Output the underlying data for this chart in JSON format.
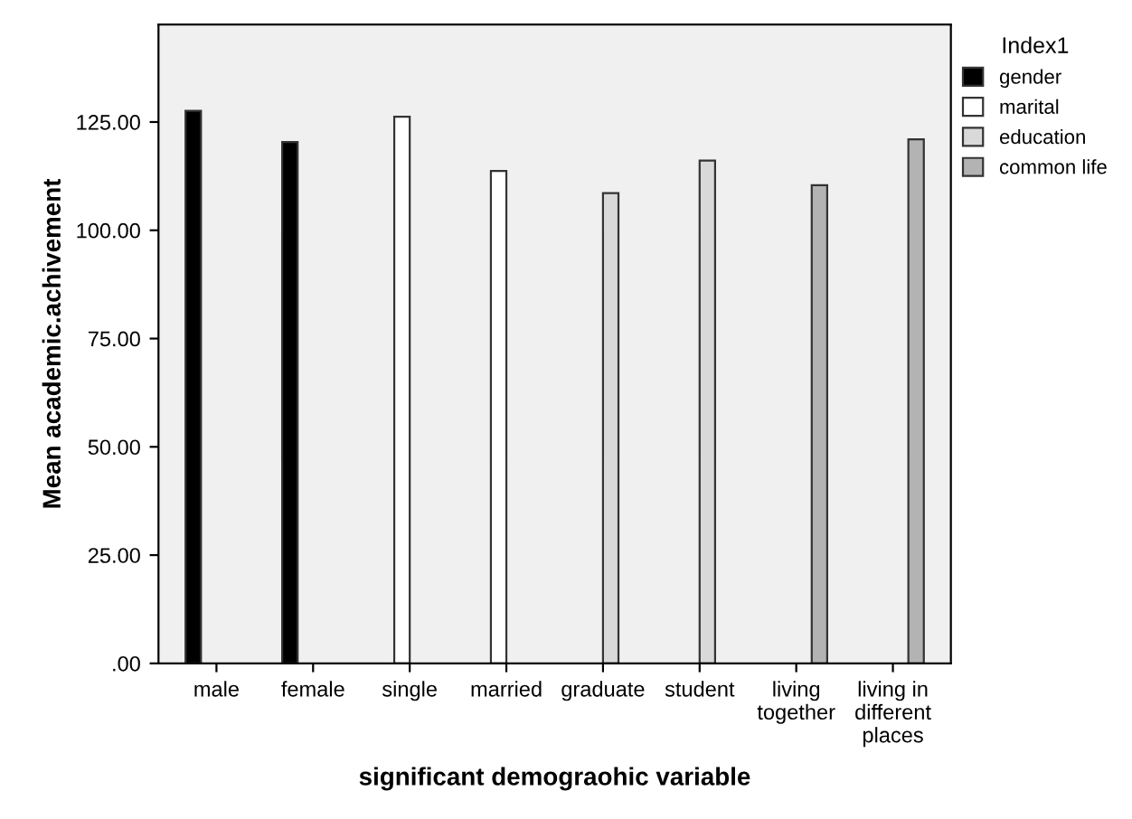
{
  "chart_data": {
    "type": "bar",
    "xlabel": "significant demograohic variable",
    "ylabel": "Mean academic.achivement",
    "legend_title": "Index1",
    "legend": "top right",
    "categories": [
      "male",
      "female",
      "single",
      "married",
      "graduate",
      "student",
      "living\ntogether",
      "living in\ndifferent\nplaces"
    ],
    "series": [
      {
        "name": "gender",
        "color": "#000000",
        "values": [
          127.6,
          120.4,
          null,
          null,
          null,
          null,
          null,
          null
        ]
      },
      {
        "name": "marital",
        "color": "#ffffff",
        "values": [
          null,
          null,
          126.2,
          113.7,
          null,
          null,
          null,
          null
        ]
      },
      {
        "name": "education",
        "color": "#d9d9d9",
        "values": [
          null,
          null,
          null,
          null,
          108.6,
          116.1,
          null,
          null
        ]
      },
      {
        "name": "common life",
        "color": "#b3b3b3",
        "values": [
          null,
          null,
          null,
          null,
          null,
          null,
          110.4,
          121.0
        ]
      }
    ],
    "ylim": [
      0,
      147.5
    ],
    "yticks": [
      {
        "value": 0,
        "label": ".00"
      },
      {
        "value": 25,
        "label": "25.00"
      },
      {
        "value": 50,
        "label": "50.00"
      },
      {
        "value": 75,
        "label": "75.00"
      },
      {
        "value": 100,
        "label": "100.00"
      },
      {
        "value": 125,
        "label": "125.00"
      }
    ],
    "grid": false
  }
}
